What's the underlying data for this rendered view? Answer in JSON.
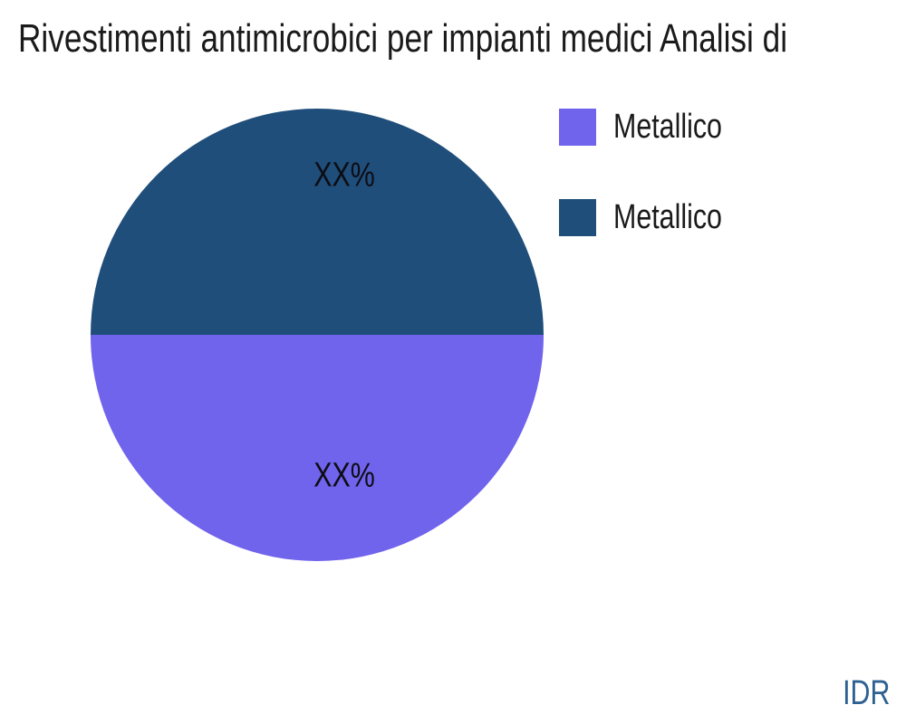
{
  "title": "Rivestimenti antimicrobici per impianti medici Analisi di",
  "watermark": "IDR",
  "colors": {
    "slice_top": "#1f4e7b",
    "slice_bottom": "#7063ec",
    "watermark_text": "#2e6191",
    "label_text": "#0d0d14",
    "background": "#ffffff"
  },
  "legend": {
    "position": "right",
    "items": [
      {
        "label": "Metallico",
        "color": "#7063ec"
      },
      {
        "label": "Metallico",
        "color": "#1f4e7b"
      }
    ]
  },
  "chart_data": {
    "type": "pie",
    "title": "Rivestimenti antimicrobici per impianti medici Analisi di",
    "legend_position": "right",
    "slices": [
      {
        "label": "Metallico",
        "value": 50,
        "display_value": "XX%",
        "color": "#1f4e7b",
        "position": "top"
      },
      {
        "label": "Metallico",
        "value": 50,
        "display_value": "XX%",
        "color": "#7063ec",
        "position": "bottom"
      }
    ]
  }
}
